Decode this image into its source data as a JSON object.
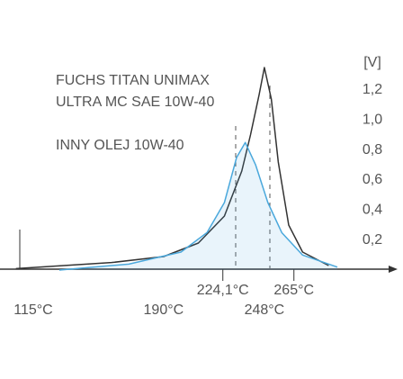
{
  "chart_data": {
    "type": "line",
    "y_label": "[V]",
    "xlim": [
      100,
      305
    ],
    "ylim": [
      0,
      1.2
    ],
    "xticks": [
      {
        "value": 115,
        "label": "115°C"
      },
      {
        "value": 190,
        "label": "190°C"
      },
      {
        "value": 248,
        "label": "248°C"
      }
    ],
    "yticks": [
      {
        "value": 0.2,
        "label": "0,2"
      },
      {
        "value": 0.4,
        "label": "0,4"
      },
      {
        "value": 0.6,
        "label": "0,6"
      },
      {
        "value": 0.8,
        "label": "0,8"
      },
      {
        "value": 1.0,
        "label": "1,0"
      },
      {
        "value": 1.2,
        "label": "1,2"
      }
    ],
    "annotations": [
      {
        "value": 224.1,
        "label": "224,1°C"
      },
      {
        "value": 265,
        "label": "265°C"
      }
    ],
    "series": [
      {
        "name": "FUCHS TITAN UNIMAX\nULTRA MC SAE 10W-40",
        "color": "#333333",
        "x": [
          105,
          160,
          190,
          210,
          225,
          235,
          240,
          245,
          248,
          252,
          256,
          262,
          270,
          285
        ],
        "values": [
          0.01,
          0.05,
          0.09,
          0.18,
          0.36,
          0.66,
          0.9,
          1.17,
          1.35,
          1.14,
          0.72,
          0.3,
          0.12,
          0.03
        ]
      },
      {
        "name": "INNY OLEJ 10W-40",
        "color": "#4aa8dc",
        "x": [
          130,
          170,
          200,
          215,
          225,
          232,
          237,
          243,
          250,
          258,
          270,
          290
        ],
        "values": [
          0.0,
          0.04,
          0.12,
          0.25,
          0.45,
          0.75,
          0.85,
          0.7,
          0.45,
          0.25,
          0.1,
          0.02
        ]
      }
    ]
  }
}
